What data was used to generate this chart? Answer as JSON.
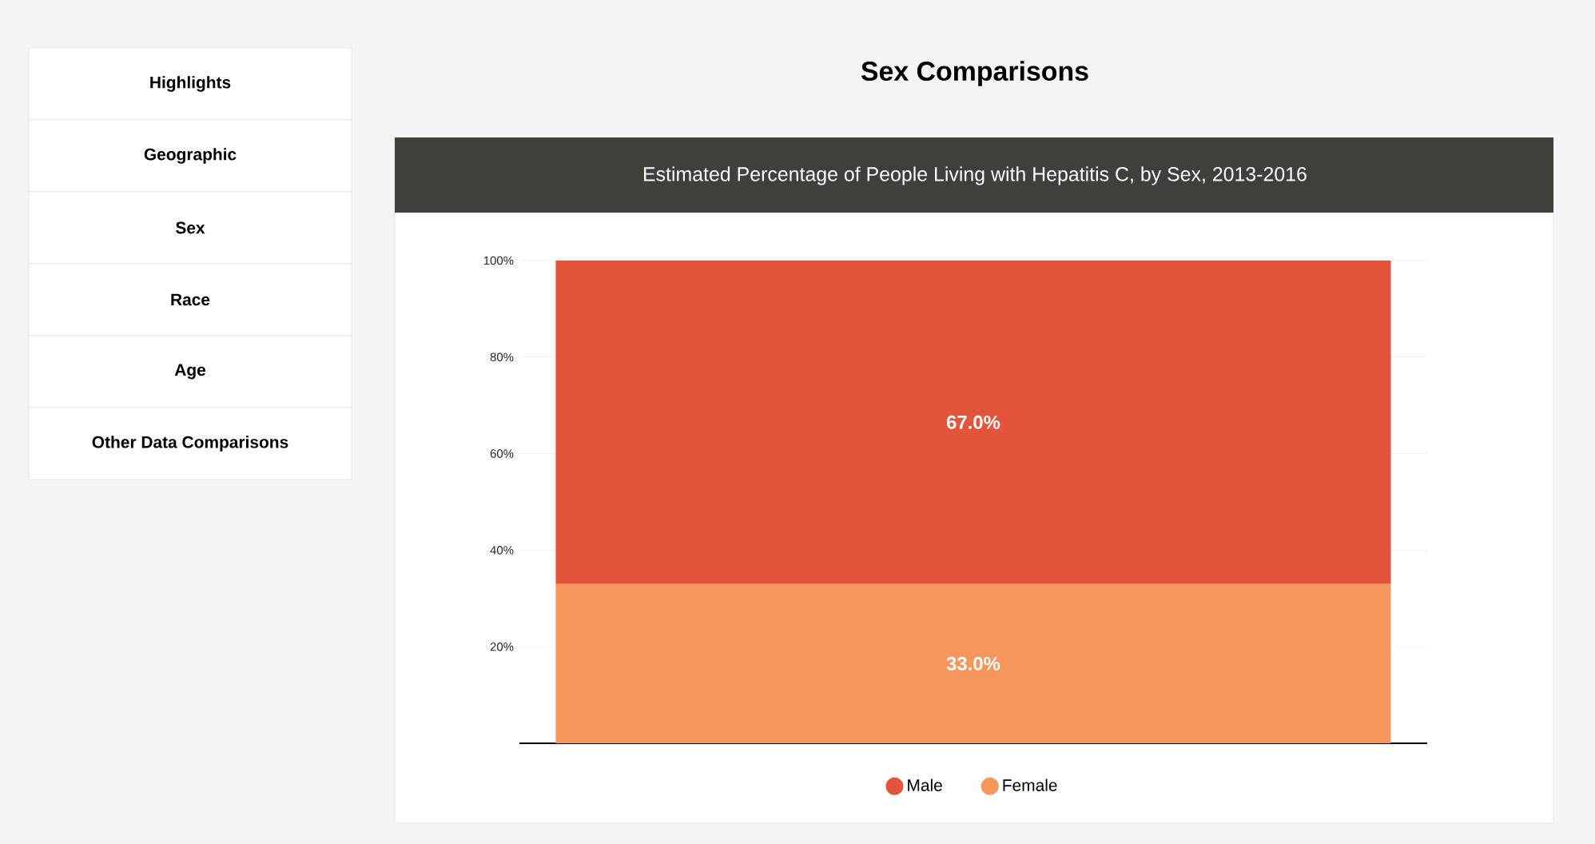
{
  "chart_data": {
    "type": "bar",
    "title": "Sex Comparisons",
    "subtitle": "Estimated Percentage of People Living with Hepatitis C, by Sex, 2013-2016",
    "annotations": [
      "Highlights",
      "Geographic",
      "Sex",
      "Race",
      "Age",
      "Other Data Comparisons"
    ],
    "categories": [
      null
    ],
    "stacked": true,
    "series": [
      {
        "name": "Female",
        "color": "#f5975d",
        "values": [
          33.0
        ],
        "value_labels": [
          "33.0%"
        ]
      },
      {
        "name": "Male",
        "color": "#e2553a",
        "values": [
          67.0
        ],
        "value_labels": [
          "67.0%"
        ]
      }
    ],
    "ylim": [
      0,
      100
    ],
    "yticks": [
      {
        "value": 20,
        "label": "20%"
      },
      {
        "value": 40,
        "label": "40%"
      },
      {
        "value": 60,
        "label": "60%"
      },
      {
        "value": 80,
        "label": "80%"
      },
      {
        "value": 100,
        "label": "100%"
      }
    ],
    "grid": "y",
    "legend": "bottom"
  }
}
